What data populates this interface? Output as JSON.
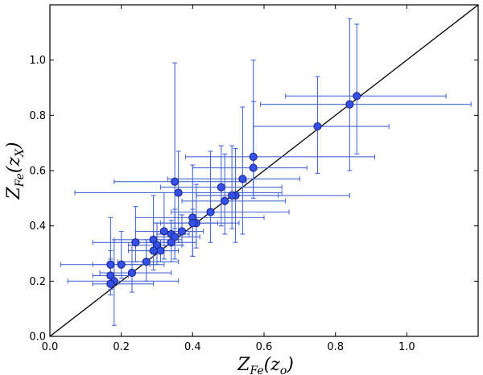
{
  "chart_data": {
    "type": "scatter",
    "xlabel": {
      "main": "Z",
      "sub": "Fe",
      "arg": "(z",
      "arg_sub": "o",
      "close": ")"
    },
    "ylabel": {
      "main": "Z",
      "sub": "Fe",
      "arg": "(z",
      "arg_sub": "X",
      "close": ")"
    },
    "xlim": [
      0.0,
      1.2
    ],
    "ylim": [
      0.0,
      1.2
    ],
    "xticks": [
      "0.0",
      "0.2",
      "0.4",
      "0.6",
      "0.8",
      "1.0"
    ],
    "yticks": [
      "0.0",
      "0.2",
      "0.4",
      "0.6",
      "0.8",
      "1.0"
    ],
    "grid": false,
    "reference_line": {
      "x": [
        0.0,
        1.2
      ],
      "y": [
        0.0,
        1.2
      ],
      "color": "#000000"
    },
    "colors": {
      "point_fill": "#3550e8",
      "point_edge": "#1a2580",
      "errorbar": "#4a6ad8",
      "line": "#000000"
    },
    "series": [
      {
        "points": [
          {
            "x": 0.86,
            "y": 0.87,
            "xerr": [
              0.2,
              0.25
            ],
            "yerr": [
              0.21,
              0.26
            ]
          },
          {
            "x": 0.84,
            "y": 0.84,
            "xerr": [
              0.25,
              0.34
            ],
            "yerr": [
              0.24,
              0.31
            ]
          },
          {
            "x": 0.75,
            "y": 0.76,
            "xerr": [
              0.18,
              0.2
            ],
            "yerr": [
              0.17,
              0.18
            ]
          },
          {
            "x": 0.57,
            "y": 0.65,
            "xerr": [
              0.19,
              0.34
            ],
            "yerr": [
              0.14,
              0.35
            ]
          },
          {
            "x": 0.57,
            "y": 0.61,
            "xerr": [
              0.17,
              0.15
            ],
            "yerr": [
              0.11,
              0.24
            ]
          },
          {
            "x": 0.54,
            "y": 0.57,
            "xerr": [
              0.21,
              0.16
            ],
            "yerr": [
              0.2,
              0.26
            ]
          },
          {
            "x": 0.48,
            "y": 0.54,
            "xerr": [
              0.17,
              0.17
            ],
            "yerr": [
              0.14,
              0.15
            ]
          },
          {
            "x": 0.35,
            "y": 0.56,
            "xerr": [
              0.17,
              0.2
            ],
            "yerr": [
              0.17,
              0.43
            ]
          },
          {
            "x": 0.36,
            "y": 0.52,
            "xerr": [
              0.29,
              0.29
            ],
            "yerr": [
              0.18,
              0.15
            ]
          },
          {
            "x": 0.52,
            "y": 0.51,
            "xerr": [
              0.11,
              0.32
            ],
            "yerr": [
              0.17,
              0.17
            ]
          },
          {
            "x": 0.51,
            "y": 0.51,
            "xerr": [
              0.1,
              0.13
            ],
            "yerr": [
              0.12,
              0.18
            ]
          },
          {
            "x": 0.49,
            "y": 0.49,
            "xerr": [
              0.12,
              0.17
            ],
            "yerr": [
              0.12,
              0.17
            ]
          },
          {
            "x": 0.45,
            "y": 0.45,
            "xerr": [
              0.11,
              0.22
            ],
            "yerr": [
              0.11,
              0.22
            ]
          },
          {
            "x": 0.4,
            "y": 0.43,
            "xerr": [
              0.16,
              0.2
            ],
            "yerr": [
              0.14,
              0.19
            ]
          },
          {
            "x": 0.41,
            "y": 0.41,
            "xerr": [
              0.1,
              0.12
            ],
            "yerr": [
              0.09,
              0.14
            ]
          },
          {
            "x": 0.4,
            "y": 0.41,
            "xerr": [
              0.11,
              0.07
            ],
            "yerr": [
              0.12,
              0.05
            ]
          },
          {
            "x": 0.37,
            "y": 0.38,
            "xerr": [
              0.06,
              0.06
            ],
            "yerr": [
              0.05,
              0.06
            ]
          },
          {
            "x": 0.32,
            "y": 0.38,
            "xerr": [
              0.08,
              0.09
            ],
            "yerr": [
              0.1,
              0.14
            ]
          },
          {
            "x": 0.34,
            "y": 0.37,
            "xerr": [
              0.04,
              0.05
            ],
            "yerr": [
              0.04,
              0.04
            ]
          },
          {
            "x": 0.35,
            "y": 0.36,
            "xerr": [
              0.06,
              0.07
            ],
            "yerr": [
              0.08,
              0.1
            ]
          },
          {
            "x": 0.29,
            "y": 0.35,
            "xerr": [
              0.11,
              0.08
            ],
            "yerr": [
              0.09,
              0.16
            ]
          },
          {
            "x": 0.34,
            "y": 0.34,
            "xerr": [
              0.07,
              0.07
            ],
            "yerr": [
              0.07,
              0.08
            ]
          },
          {
            "x": 0.24,
            "y": 0.34,
            "xerr": [
              0.12,
              0.09
            ],
            "yerr": [
              0.07,
              0.13
            ]
          },
          {
            "x": 0.3,
            "y": 0.33,
            "xerr": [
              0.08,
              0.07
            ],
            "yerr": [
              0.07,
              0.08
            ]
          },
          {
            "x": 0.31,
            "y": 0.31,
            "xerr": [
              0.04,
              0.04
            ],
            "yerr": [
              0.04,
              0.04
            ]
          },
          {
            "x": 0.29,
            "y": 0.31,
            "xerr": [
              0.07,
              0.07
            ],
            "yerr": [
              0.07,
              0.07
            ]
          },
          {
            "x": 0.27,
            "y": 0.27,
            "xerr": [
              0.08,
              0.09
            ],
            "yerr": [
              0.07,
              0.08
            ]
          },
          {
            "x": 0.17,
            "y": 0.26,
            "xerr": [
              0.14,
              0.11
            ],
            "yerr": [
              0.07,
              0.17
            ]
          },
          {
            "x": 0.2,
            "y": 0.26,
            "xerr": [
              0.08,
              0.12
            ],
            "yerr": [
              0.05,
              0.12
            ]
          },
          {
            "x": 0.23,
            "y": 0.23,
            "xerr": [
              0.09,
              0.11
            ],
            "yerr": [
              0.07,
              0.1
            ]
          },
          {
            "x": 0.17,
            "y": 0.22,
            "xerr": [
              0.05,
              0.05
            ],
            "yerr": [
              0.05,
              0.09
            ]
          },
          {
            "x": 0.18,
            "y": 0.2,
            "xerr": [
              0.13,
              0.18
            ],
            "yerr": [
              0.16,
              0.15
            ]
          },
          {
            "x": 0.17,
            "y": 0.19,
            "xerr": [
              0.05,
              0.12
            ],
            "yerr": [
              0.04,
              0.09
            ]
          }
        ]
      }
    ]
  }
}
